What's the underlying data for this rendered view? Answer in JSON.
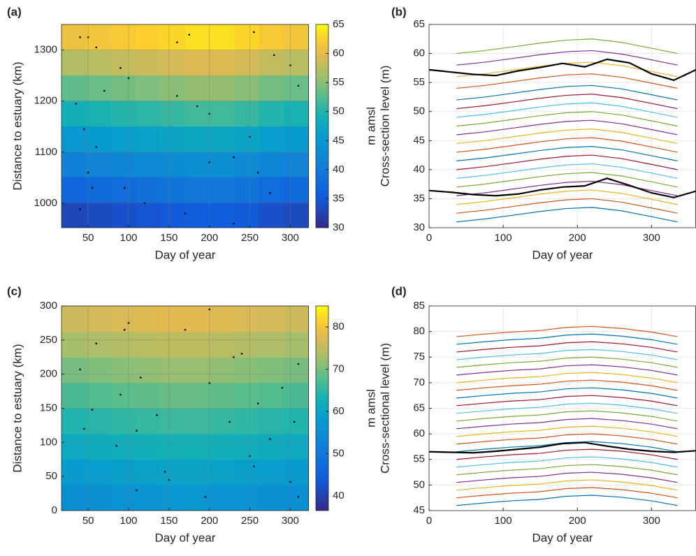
{
  "chart_data": [
    {
      "type": "heatmap",
      "panel_label": "(a)",
      "xlabel": "Day of year",
      "ylabel": "Distance to estuary (km)",
      "colorbar_label": "m amsl",
      "colormap": "parula",
      "grid": true,
      "xlim": [
        17,
        323
      ],
      "ylim": [
        952,
        1350
      ],
      "xticks": [
        50,
        100,
        150,
        200,
        250,
        300
      ],
      "yticks": [
        1000,
        1100,
        1200,
        1300
      ],
      "clim": [
        30,
        65
      ],
      "cticks": [
        30,
        35,
        40,
        45,
        50,
        55,
        60,
        65
      ],
      "x_edges": [
        17,
        48,
        78,
        109,
        139,
        170,
        200,
        231,
        261,
        292,
        323
      ],
      "y_edges": [
        952,
        1002,
        1052,
        1101,
        1151,
        1201,
        1251,
        1300,
        1350
      ],
      "z": [
        [
          33,
          33.5,
          34,
          34.5,
          35,
          35.5,
          35.5,
          35,
          34,
          33.5
        ],
        [
          37,
          37.5,
          38,
          38.5,
          39,
          39.5,
          39.5,
          39,
          38,
          37.5
        ],
        [
          41,
          41.5,
          42,
          42.5,
          43,
          43.5,
          43.5,
          43,
          42,
          41.5
        ],
        [
          45,
          45.5,
          46,
          46.5,
          47,
          47.5,
          47.5,
          47,
          46,
          45.5
        ],
        [
          49,
          49.5,
          50,
          50.5,
          51,
          51.5,
          51.5,
          51,
          50,
          49.5
        ],
        [
          53,
          53.5,
          54,
          54.5,
          55,
          55.5,
          55.5,
          55,
          54,
          53.5
        ],
        [
          57,
          57.5,
          58,
          58.5,
          59,
          59.5,
          59.5,
          59,
          58,
          57.5
        ],
        [
          61,
          61.5,
          62,
          62.5,
          63,
          63.5,
          63.5,
          63,
          62,
          61.5
        ]
      ],
      "points": {
        "x": [
          40,
          50,
          60,
          90,
          100,
          70,
          35,
          45,
          60,
          50,
          55,
          40,
          95,
          120,
          160,
          185,
          200,
          230,
          250,
          260,
          275,
          300,
          310,
          160,
          175,
          255,
          280,
          200,
          170,
          230
        ],
        "y": [
          1325,
          1325,
          1305,
          1265,
          1245,
          1220,
          1195,
          1145,
          1110,
          1060,
          1030,
          988,
          1030,
          1000,
          1210,
          1190,
          1175,
          1090,
          1130,
          1060,
          1020,
          1270,
          1230,
          1315,
          1330,
          1335,
          1290,
          1080,
          980,
          960
        ]
      }
    },
    {
      "type": "line",
      "panel_label": "(b)",
      "xlabel": "Day of year",
      "ylabel": "Cross-section level (m)",
      "grid": true,
      "xlim": [
        0,
        360
      ],
      "ylim": [
        30,
        65
      ],
      "xticks": [
        0,
        100,
        200,
        300
      ],
      "yticks": [
        30,
        35,
        40,
        45,
        50,
        55,
        60,
        65
      ],
      "x": [
        37,
        75,
        110,
        150,
        185,
        220,
        260,
        300,
        335
      ],
      "series": [
        {
          "color": "#0072bd",
          "values": [
            31,
            31.5,
            32.1,
            32.8,
            33.3,
            33.5,
            32.9,
            31.9,
            31
          ]
        },
        {
          "color": "#d95319",
          "values": [
            32.5,
            33,
            33.6,
            34.3,
            34.8,
            35,
            34.4,
            33.4,
            32.5
          ]
        },
        {
          "color": "#edb120",
          "values": [
            34,
            34.5,
            35.1,
            35.8,
            36.3,
            36.5,
            35.9,
            34.9,
            34
          ]
        },
        {
          "color": "#7e2f8e",
          "values": [
            35.5,
            36,
            36.6,
            37.3,
            37.8,
            38,
            37.4,
            36.4,
            35.5
          ]
        },
        {
          "color": "#77ac30",
          "values": [
            37,
            37.5,
            38.1,
            38.8,
            39.3,
            39.5,
            38.9,
            37.9,
            37
          ]
        },
        {
          "color": "#4dbeee",
          "values": [
            38.5,
            39,
            39.6,
            40.3,
            40.8,
            41,
            40.4,
            39.4,
            38.5
          ]
        },
        {
          "color": "#a2142f",
          "values": [
            40,
            40.5,
            41.1,
            41.8,
            42.3,
            42.5,
            41.9,
            40.9,
            40
          ]
        },
        {
          "color": "#0072bd",
          "values": [
            41.5,
            42,
            42.6,
            43.3,
            43.8,
            44,
            43.4,
            42.4,
            41.5
          ]
        },
        {
          "color": "#d95319",
          "values": [
            43,
            43.5,
            44.1,
            44.8,
            45.3,
            45.5,
            44.9,
            43.9,
            43
          ]
        },
        {
          "color": "#edb120",
          "values": [
            44.5,
            45,
            45.6,
            46.3,
            46.8,
            47,
            46.4,
            45.4,
            44.5
          ]
        },
        {
          "color": "#7e2f8e",
          "values": [
            46,
            46.5,
            47.1,
            47.8,
            48.3,
            48.5,
            47.9,
            46.9,
            46
          ]
        },
        {
          "color": "#77ac30",
          "values": [
            47.5,
            48,
            48.6,
            49.3,
            49.8,
            50,
            49.4,
            48.4,
            47.5
          ]
        },
        {
          "color": "#4dbeee",
          "values": [
            49,
            49.5,
            50.1,
            50.8,
            51.3,
            51.5,
            50.9,
            49.9,
            49
          ]
        },
        {
          "color": "#a2142f",
          "values": [
            50.5,
            51,
            51.6,
            52.3,
            52.8,
            53,
            52.4,
            51.4,
            50.5
          ]
        },
        {
          "color": "#0072bd",
          "values": [
            52,
            52.5,
            53.1,
            53.8,
            54.3,
            54.5,
            53.9,
            52.9,
            52
          ]
        },
        {
          "color": "#d95319",
          "values": [
            54,
            54.5,
            55.1,
            55.8,
            56.3,
            56.5,
            55.9,
            54.9,
            54
          ]
        },
        {
          "color": "#edb120",
          "values": [
            56,
            56.5,
            57.1,
            57.8,
            58.3,
            58.5,
            57.9,
            56.9,
            56
          ]
        },
        {
          "color": "#7e2f8e",
          "values": [
            58,
            58.5,
            59.1,
            59.8,
            60.3,
            60.5,
            59.9,
            58.9,
            58
          ]
        },
        {
          "color": "#77ac30",
          "values": [
            60,
            60.5,
            61.1,
            61.8,
            62.3,
            62.5,
            61.9,
            60.9,
            60
          ]
        },
        {
          "color": "#000000",
          "width": 2.2,
          "x": [
            0,
            30,
            60,
            90,
            120,
            150,
            180,
            210,
            240,
            270,
            300,
            330,
            360
          ],
          "values": [
            36.4,
            36.1,
            35.7,
            35.5,
            35.8,
            36.5,
            37,
            37.2,
            38.5,
            37.3,
            36,
            35.2,
            36.3
          ]
        },
        {
          "color": "#000000",
          "width": 2.2,
          "x": [
            0,
            30,
            60,
            90,
            120,
            150,
            180,
            210,
            240,
            270,
            300,
            330,
            360
          ],
          "values": [
            57.2,
            56.8,
            56.4,
            56.2,
            57,
            57.6,
            58.3,
            57.7,
            59,
            58.4,
            56.5,
            55.4,
            57.2
          ]
        }
      ]
    },
    {
      "type": "heatmap",
      "panel_label": "(c)",
      "xlabel": "Day of year",
      "ylabel": "Distance to estuary (km)",
      "colorbar_label": "m amsl",
      "colormap": "parula",
      "grid": true,
      "xlim": [
        17,
        323
      ],
      "ylim": [
        0,
        300
      ],
      "xticks": [
        50,
        100,
        150,
        200,
        250,
        300
      ],
      "yticks": [
        0,
        50,
        100,
        150,
        200,
        250,
        300
      ],
      "clim": [
        36.5,
        85
      ],
      "cticks": [
        40,
        50,
        60,
        70,
        80
      ],
      "x_edges": [
        17,
        48,
        78,
        109,
        139,
        170,
        200,
        231,
        261,
        292,
        323
      ],
      "y_edges": [
        0,
        37.5,
        75,
        112.5,
        150,
        187.5,
        225,
        262.5,
        300
      ],
      "z": [
        [
          55,
          55.5,
          56,
          56.5,
          57,
          57,
          56.5,
          56,
          55.5,
          55
        ],
        [
          58,
          58.5,
          59,
          59.5,
          60,
          60,
          59.5,
          59,
          58.5,
          58
        ],
        [
          61,
          61.5,
          62,
          62.5,
          63,
          63,
          62.5,
          62,
          61.5,
          61
        ],
        [
          64,
          64.5,
          65,
          65.5,
          66,
          66,
          65.5,
          65,
          64.5,
          64
        ],
        [
          67,
          67.5,
          68,
          68.5,
          69,
          69,
          68.5,
          68,
          67.5,
          67
        ],
        [
          70,
          70.5,
          71,
          71.5,
          72,
          72,
          71.5,
          71,
          70.5,
          70
        ],
        [
          73,
          73.5,
          74,
          74.5,
          75,
          75,
          74.5,
          74,
          73.5,
          73
        ],
        [
          76,
          76.5,
          77,
          77.5,
          78,
          78,
          77.5,
          77,
          76.5,
          76
        ]
      ],
      "points": {
        "x": [
          100,
          95,
          60,
          40,
          115,
          90,
          55,
          45,
          85,
          110,
          135,
          145,
          150,
          110,
          200,
          230,
          240,
          260,
          290,
          310,
          305,
          275,
          250,
          255,
          195,
          300,
          310,
          200,
          170,
          225
        ],
        "y": [
          275,
          265,
          245,
          207,
          195,
          170,
          148,
          120,
          95,
          117,
          140,
          57,
          45,
          30,
          187,
          225,
          230,
          157,
          180,
          215,
          130,
          105,
          80,
          65,
          20,
          42,
          20,
          295,
          265,
          130
        ]
      }
    },
    {
      "type": "line",
      "panel_label": "(d)",
      "xlabel": "Day of year",
      "ylabel": "Cross-sectional level (m)",
      "grid": true,
      "xlim": [
        0,
        360
      ],
      "ylim": [
        45,
        85
      ],
      "xticks": [
        0,
        100,
        200,
        300
      ],
      "yticks": [
        45,
        50,
        55,
        60,
        65,
        70,
        75,
        80,
        85
      ],
      "x": [
        37,
        75,
        110,
        150,
        185,
        220,
        260,
        300,
        335
      ],
      "series": [
        {
          "color": "#0072bd",
          "values": [
            46,
            46.5,
            46.9,
            47.2,
            47.8,
            48,
            47.6,
            46.9,
            46
          ]
        },
        {
          "color": "#d95319",
          "values": [
            47.5,
            48,
            48.4,
            48.7,
            49.3,
            49.5,
            49.1,
            48.4,
            47.5
          ]
        },
        {
          "color": "#edb120",
          "values": [
            49,
            49.5,
            49.9,
            50.2,
            50.8,
            51,
            50.6,
            49.9,
            49
          ]
        },
        {
          "color": "#7e2f8e",
          "values": [
            50.5,
            51,
            51.4,
            51.7,
            52.3,
            52.5,
            52.1,
            51.4,
            50.5
          ]
        },
        {
          "color": "#77ac30",
          "values": [
            52,
            52.5,
            52.9,
            53.2,
            53.8,
            54,
            53.6,
            52.9,
            52
          ]
        },
        {
          "color": "#4dbeee",
          "values": [
            53.5,
            54,
            54.4,
            54.7,
            55.3,
            55.5,
            55.1,
            54.4,
            53.5
          ]
        },
        {
          "color": "#a2142f",
          "values": [
            55,
            55.5,
            55.9,
            56.2,
            56.8,
            57,
            56.6,
            55.9,
            55
          ]
        },
        {
          "color": "#0072bd",
          "values": [
            56.5,
            57,
            57.4,
            57.7,
            58.3,
            58.5,
            58.1,
            57.4,
            56.5
          ]
        },
        {
          "color": "#d95319",
          "values": [
            58,
            58.5,
            58.9,
            59.2,
            59.8,
            60,
            59.6,
            58.9,
            58
          ]
        },
        {
          "color": "#edb120",
          "values": [
            59.5,
            60,
            60.4,
            60.7,
            61.3,
            61.5,
            61.1,
            60.4,
            59.5
          ]
        },
        {
          "color": "#7e2f8e",
          "values": [
            61,
            61.5,
            61.9,
            62.2,
            62.8,
            63,
            62.6,
            61.9,
            61
          ]
        },
        {
          "color": "#77ac30",
          "values": [
            62.5,
            63,
            63.4,
            63.7,
            64.3,
            64.5,
            64.1,
            63.4,
            62.5
          ]
        },
        {
          "color": "#4dbeee",
          "values": [
            64,
            64.5,
            64.9,
            65.2,
            65.8,
            66,
            65.6,
            64.9,
            64
          ]
        },
        {
          "color": "#a2142f",
          "values": [
            65.5,
            66,
            66.4,
            66.7,
            67.3,
            67.5,
            67.1,
            66.4,
            65.5
          ]
        },
        {
          "color": "#0072bd",
          "values": [
            67,
            67.5,
            67.9,
            68.2,
            68.8,
            69,
            68.6,
            67.9,
            67
          ]
        },
        {
          "color": "#d95319",
          "values": [
            68.5,
            69,
            69.4,
            69.7,
            70.3,
            70.5,
            70.1,
            69.4,
            68.5
          ]
        },
        {
          "color": "#edb120",
          "values": [
            70,
            70.5,
            70.9,
            71.2,
            71.8,
            72,
            71.6,
            70.9,
            70
          ]
        },
        {
          "color": "#7e2f8e",
          "values": [
            71.5,
            72,
            72.4,
            72.7,
            73.3,
            73.5,
            73.1,
            72.4,
            71.5
          ]
        },
        {
          "color": "#77ac30",
          "values": [
            73,
            73.5,
            73.9,
            74.2,
            74.8,
            75,
            74.6,
            73.9,
            73
          ]
        },
        {
          "color": "#4dbeee",
          "values": [
            74.5,
            75,
            75.4,
            75.7,
            76.3,
            76.5,
            76.1,
            75.4,
            74.5
          ]
        },
        {
          "color": "#a2142f",
          "values": [
            76,
            76.5,
            76.9,
            77.2,
            77.8,
            78,
            77.6,
            76.9,
            76
          ]
        },
        {
          "color": "#0072bd",
          "values": [
            77.5,
            78,
            78.4,
            78.7,
            79.3,
            79.5,
            79.1,
            78.4,
            77.5
          ]
        },
        {
          "color": "#d95319",
          "values": [
            79,
            79.5,
            79.9,
            80.2,
            80.8,
            81,
            80.6,
            79.9,
            79
          ]
        },
        {
          "color": "#000000",
          "width": 2.2,
          "x": [
            0,
            30,
            60,
            90,
            120,
            150,
            180,
            210,
            240,
            270,
            300,
            330,
            360
          ],
          "values": [
            56.5,
            56.4,
            56.3,
            56.6,
            57,
            57.4,
            58.1,
            58.3,
            57.6,
            57,
            56.6,
            56.4,
            56.7
          ]
        }
      ]
    }
  ]
}
